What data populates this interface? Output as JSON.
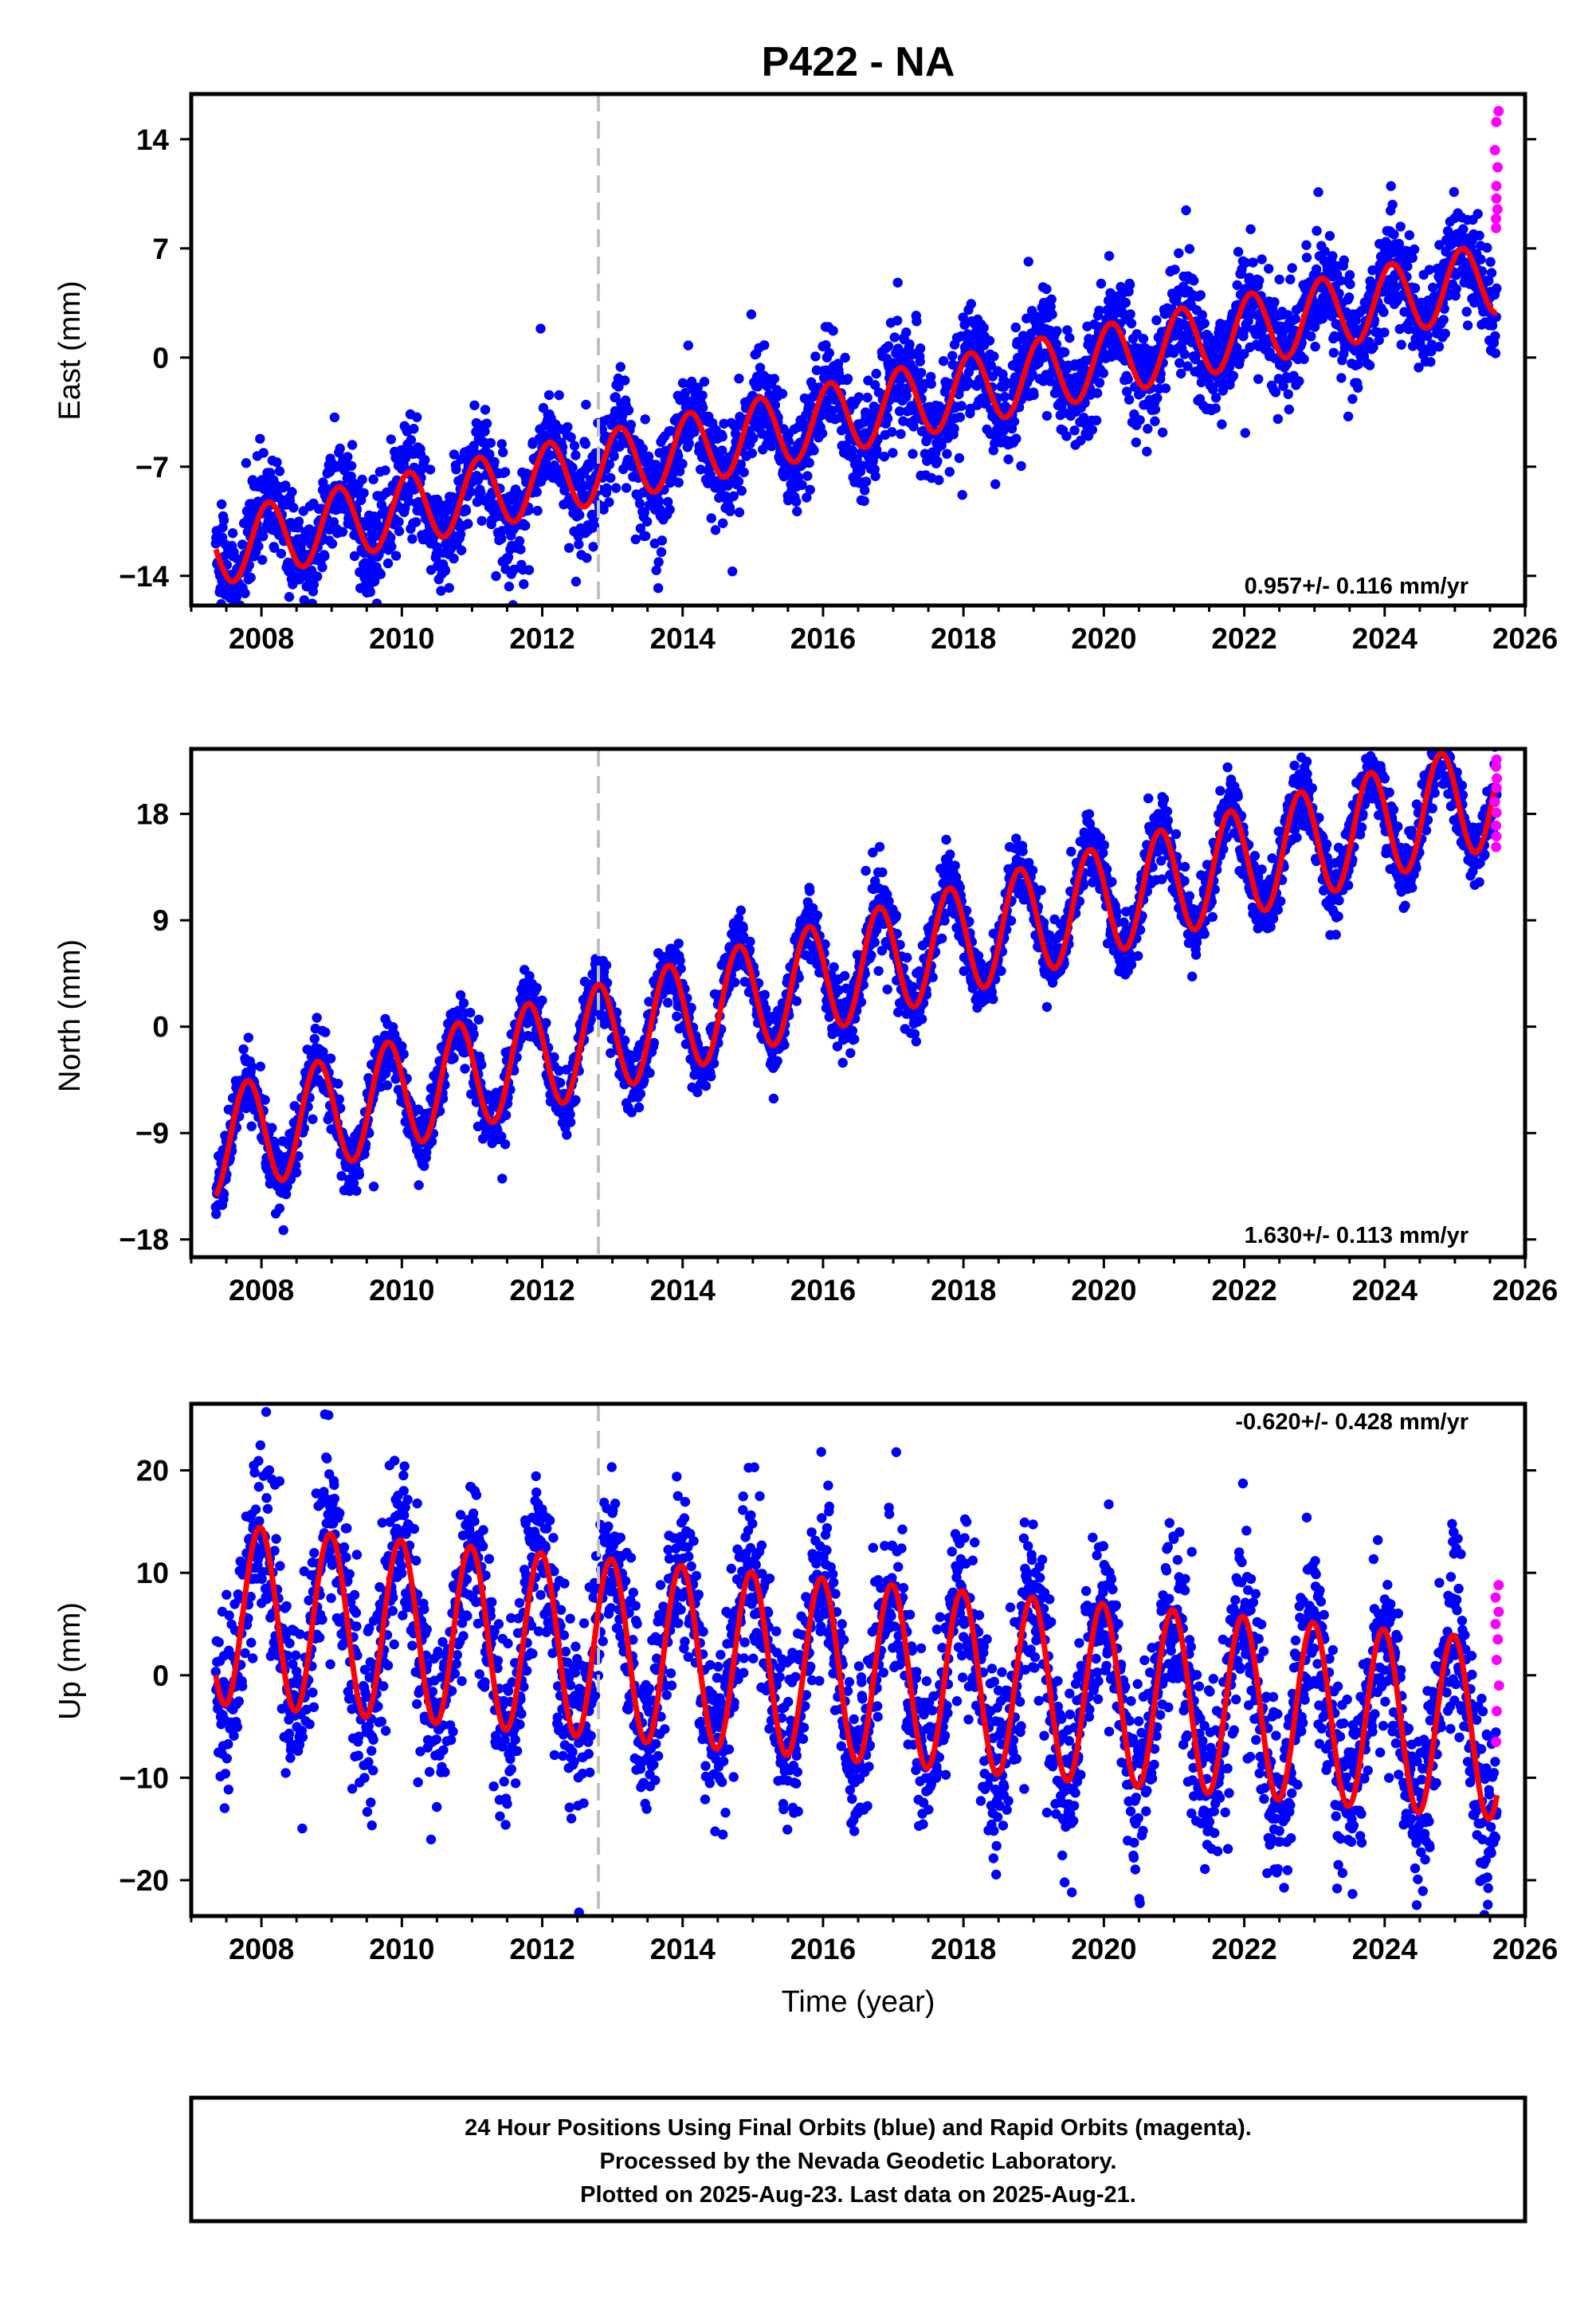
{
  "chart_data": {
    "type": "scatter",
    "title": "P422 - NA",
    "xlabel": "Time (year)",
    "xlim": [
      2007.0,
      2026.0
    ],
    "x_ticks": [
      2008,
      2010,
      2012,
      2014,
      2016,
      2018,
      2020,
      2022,
      2024,
      2026
    ],
    "event_line_x": 2012.8,
    "colors": {
      "final_orbits": "#0000ff",
      "rapid_orbits": "#ff00ff",
      "model_fit": "#ff0000",
      "event_line": "#c0c0c0"
    },
    "panels": [
      {
        "id": "east",
        "ylabel": "East (mm)",
        "ylim": [
          -15.9,
          16.9
        ],
        "y_ticks": [
          -14,
          -7,
          0,
          7,
          14
        ],
        "rate_text": "0.957+/- 0.116 mm/yr",
        "rate_position": "bottom-right",
        "x_start": 2007.35,
        "x_end": 2025.6,
        "y_start": -12.3,
        "slope": 0.957,
        "amplitude": 2.3,
        "phase_year": 0.85,
        "scatter": 1.7,
        "rapid_values": [
          8.3,
          8.9,
          9.5,
          10.2,
          11.0,
          12.2,
          13.3,
          15.1,
          15.8
        ]
      },
      {
        "id": "north",
        "ylabel": "North (mm)",
        "ylim": [
          -19.5,
          23.5
        ],
        "y_ticks": [
          -18,
          -9,
          0,
          9,
          18
        ],
        "rate_text": "1.630+/- 0.113 mm/yr",
        "rate_position": "bottom-right",
        "x_start": 2007.35,
        "x_end": 2025.6,
        "y_start": -14.3,
        "slope": 1.63,
        "amplitude": 4.6,
        "phase_year": 0.55,
        "scatter": 1.4,
        "rapid_values": [
          15.2,
          16.1,
          17.0,
          18.1,
          19.0,
          20.2,
          21.0,
          22.0,
          22.6
        ]
      },
      {
        "id": "up",
        "ylabel": "Up (mm)",
        "ylim": [
          -23.5,
          26.5
        ],
        "y_ticks": [
          -20,
          -10,
          0,
          10,
          20
        ],
        "rate_text": "-0.620+/- 0.428 mm/yr",
        "rate_position": "top-right",
        "x_start": 2007.35,
        "x_end": 2025.6,
        "y_start": 0.0,
        "slope": -0.62,
        "amplitude": 8.8,
        "phase_year": 0.73,
        "scatter": 4.2,
        "rapid_values": [
          -6.5,
          -3.5,
          -1.0,
          1.5,
          3.5,
          5.0,
          6.2,
          7.6,
          8.8
        ]
      }
    ]
  },
  "footer": {
    "line1": "24 Hour Positions Using Final Orbits (blue) and Rapid Orbits (magenta).",
    "line2": "Processed by the Nevada Geodetic Laboratory.",
    "line3": "Plotted on 2025-Aug-23. Last data on 2025-Aug-21."
  }
}
